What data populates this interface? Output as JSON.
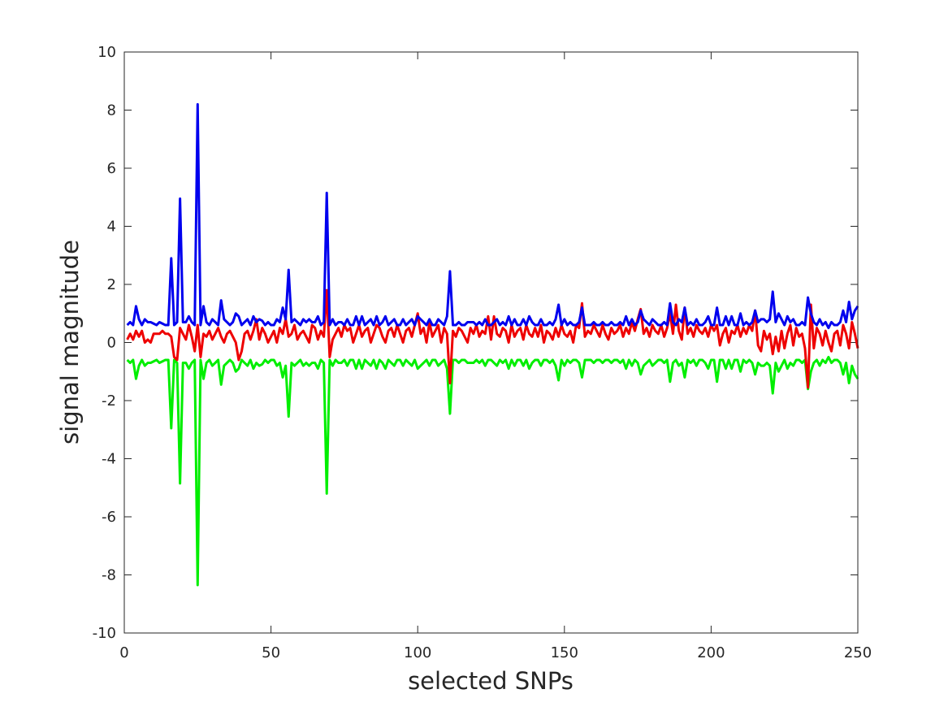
{
  "chart_data": {
    "type": "line",
    "xlabel": "selected SNPs",
    "ylabel": "signal magnitude",
    "xlim": [
      0,
      250
    ],
    "xticks": [
      0,
      50,
      100,
      150,
      200,
      250
    ],
    "ylim": [
      -10,
      10
    ],
    "yticks": [
      -10,
      -8,
      -6,
      -4,
      -2,
      0,
      2,
      4,
      6,
      8,
      10
    ],
    "x": [
      1,
      2,
      3,
      4,
      5,
      6,
      7,
      8,
      9,
      10,
      11,
      12,
      13,
      14,
      15,
      16,
      17,
      18,
      19,
      20,
      21,
      22,
      23,
      24,
      25,
      26,
      27,
      28,
      29,
      30,
      31,
      32,
      33,
      34,
      35,
      36,
      37,
      38,
      39,
      40,
      41,
      42,
      43,
      44,
      45,
      46,
      47,
      48,
      49,
      50,
      51,
      52,
      53,
      54,
      55,
      56,
      57,
      58,
      59,
      60,
      61,
      62,
      63,
      64,
      65,
      66,
      67,
      68,
      69,
      70,
      71,
      72,
      73,
      74,
      75,
      76,
      77,
      78,
      79,
      80,
      81,
      82,
      83,
      84,
      85,
      86,
      87,
      88,
      89,
      90,
      91,
      92,
      93,
      94,
      95,
      96,
      97,
      98,
      99,
      100,
      101,
      102,
      103,
      104,
      105,
      106,
      107,
      108,
      109,
      110,
      111,
      112,
      113,
      114,
      115,
      116,
      117,
      118,
      119,
      120,
      121,
      122,
      123,
      124,
      125,
      126,
      127,
      128,
      129,
      130,
      131,
      132,
      133,
      134,
      135,
      136,
      137,
      138,
      139,
      140,
      141,
      142,
      143,
      144,
      145,
      146,
      147,
      148,
      149,
      150,
      151,
      152,
      153,
      154,
      155,
      156,
      157,
      158,
      159,
      160,
      161,
      162,
      163,
      164,
      165,
      166,
      167,
      168,
      169,
      170,
      171,
      172,
      173,
      174,
      175,
      176,
      177,
      178,
      179,
      180,
      181,
      182,
      183,
      184,
      185,
      186,
      187,
      188,
      189,
      190,
      191,
      192,
      193,
      194,
      195,
      196,
      197,
      198,
      199,
      200,
      201,
      202,
      203,
      204,
      205,
      206,
      207,
      208,
      209,
      210,
      211,
      212,
      213,
      214,
      215,
      216,
      217,
      218,
      219,
      220,
      221,
      222,
      223,
      224,
      225,
      226,
      227,
      228,
      229,
      230,
      231,
      232,
      233,
      234,
      235,
      236,
      237,
      238,
      239,
      240,
      241,
      242,
      243,
      244,
      245,
      246,
      247,
      248,
      249,
      250
    ],
    "series": [
      {
        "color": "#00ee00",
        "values": [
          -0.6,
          -0.7,
          -0.6,
          -1.25,
          -0.8,
          -0.6,
          -0.8,
          -0.7,
          -0.7,
          -0.65,
          -0.6,
          -0.7,
          -0.65,
          -0.6,
          -0.6,
          -2.95,
          -0.6,
          -0.7,
          -4.85,
          -0.7,
          -0.7,
          -0.9,
          -0.7,
          -0.6,
          -8.35,
          -0.6,
          -1.25,
          -0.7,
          -0.6,
          -0.8,
          -0.7,
          -0.6,
          -1.45,
          -0.8,
          -0.7,
          -0.6,
          -0.7,
          -1.0,
          -0.9,
          -0.6,
          -0.7,
          -0.8,
          -0.6,
          -0.9,
          -0.7,
          -0.8,
          -0.75,
          -0.6,
          -0.7,
          -0.6,
          -0.6,
          -0.8,
          -0.7,
          -1.2,
          -0.8,
          -2.55,
          -0.7,
          -0.8,
          -0.7,
          -0.6,
          -0.8,
          -0.7,
          -0.8,
          -0.7,
          -0.7,
          -0.9,
          -0.6,
          -0.7,
          -5.2,
          -0.6,
          -0.8,
          -0.6,
          -0.7,
          -0.7,
          -0.6,
          -0.8,
          -0.6,
          -0.6,
          -0.9,
          -0.6,
          -0.9,
          -0.6,
          -0.7,
          -0.8,
          -0.6,
          -0.9,
          -0.6,
          -0.7,
          -0.9,
          -0.6,
          -0.7,
          -0.8,
          -0.6,
          -0.6,
          -0.8,
          -0.6,
          -0.7,
          -0.8,
          -0.6,
          -0.9,
          -0.8,
          -0.7,
          -0.6,
          -0.8,
          -0.6,
          -0.6,
          -0.8,
          -0.7,
          -0.6,
          -0.9,
          -2.45,
          -0.6,
          -0.6,
          -0.7,
          -0.6,
          -0.6,
          -0.7,
          -0.7,
          -0.7,
          -0.6,
          -0.7,
          -0.6,
          -0.8,
          -0.6,
          -0.6,
          -0.7,
          -0.8,
          -0.6,
          -0.7,
          -0.6,
          -0.9,
          -0.6,
          -0.8,
          -0.6,
          -0.6,
          -0.8,
          -0.6,
          -0.9,
          -0.7,
          -0.6,
          -0.6,
          -0.8,
          -0.6,
          -0.6,
          -0.7,
          -0.6,
          -0.8,
          -1.3,
          -0.6,
          -0.8,
          -0.6,
          -0.7,
          -0.6,
          -0.6,
          -0.7,
          -1.2,
          -0.6,
          -0.6,
          -0.6,
          -0.7,
          -0.6,
          -0.6,
          -0.7,
          -0.6,
          -0.6,
          -0.7,
          -0.6,
          -0.6,
          -0.7,
          -0.6,
          -0.9,
          -0.6,
          -0.8,
          -0.6,
          -0.7,
          -1.1,
          -0.8,
          -0.7,
          -0.6,
          -0.8,
          -0.7,
          -0.6,
          -0.6,
          -0.7,
          -0.6,
          -1.35,
          -0.7,
          -0.6,
          -0.8,
          -0.7,
          -1.2,
          -0.6,
          -0.7,
          -0.6,
          -0.8,
          -0.6,
          -0.6,
          -0.7,
          -0.9,
          -0.6,
          -0.6,
          -1.35,
          -0.6,
          -0.6,
          -0.9,
          -0.6,
          -0.9,
          -0.6,
          -0.6,
          -1.0,
          -0.6,
          -0.7,
          -0.6,
          -0.7,
          -1.1,
          -0.7,
          -0.8,
          -0.8,
          -0.7,
          -0.8,
          -1.75,
          -0.7,
          -1.0,
          -0.8,
          -0.6,
          -0.9,
          -0.7,
          -0.8,
          -0.6,
          -0.6,
          -0.7,
          -0.6,
          -1.6,
          -1.0,
          -0.7,
          -0.6,
          -0.8,
          -0.6,
          -0.7,
          -0.5,
          -0.7,
          -0.6,
          -0.6,
          -0.7,
          -1.1,
          -0.7,
          -1.4,
          -0.8,
          -1.1,
          -1.25
        ]
      },
      {
        "color": "#ee0000",
        "values": [
          0.1,
          0.3,
          0.1,
          0.4,
          0.2,
          0.4,
          0.0,
          0.1,
          0.0,
          0.3,
          0.3,
          0.3,
          0.4,
          0.3,
          0.3,
          0.2,
          -0.5,
          -0.6,
          0.5,
          0.3,
          0.1,
          0.6,
          0.2,
          -0.3,
          0.6,
          -0.5,
          0.3,
          0.2,
          0.4,
          0.1,
          0.3,
          0.5,
          0.2,
          0.0,
          0.3,
          0.4,
          0.2,
          0.0,
          -0.6,
          -0.3,
          0.3,
          0.4,
          0.1,
          0.4,
          0.8,
          0.1,
          0.5,
          0.3,
          0.0,
          0.2,
          0.4,
          0.0,
          0.5,
          0.3,
          0.8,
          0.2,
          0.3,
          0.6,
          0.1,
          0.3,
          0.4,
          0.2,
          0.0,
          0.6,
          0.5,
          0.1,
          0.4,
          0.2,
          1.8,
          -0.5,
          0.1,
          0.3,
          0.5,
          0.2,
          0.6,
          0.4,
          0.5,
          0.0,
          0.3,
          0.6,
          0.2,
          0.4,
          0.5,
          0.0,
          0.3,
          0.6,
          0.5,
          0.2,
          0.0,
          0.4,
          0.5,
          0.2,
          0.6,
          0.3,
          0.0,
          0.4,
          0.5,
          0.2,
          0.6,
          1.0,
          0.3,
          0.5,
          0.0,
          0.7,
          0.2,
          0.4,
          0.6,
          0.0,
          0.5,
          0.3,
          -1.4,
          0.4,
          0.2,
          0.5,
          0.4,
          0.2,
          0.0,
          0.5,
          0.3,
          0.6,
          0.2,
          0.4,
          0.3,
          0.9,
          0.1,
          0.9,
          0.3,
          0.2,
          0.5,
          0.4,
          0.0,
          0.6,
          0.2,
          0.4,
          0.5,
          0.1,
          0.6,
          0.3,
          0.2,
          0.5,
          0.2,
          0.6,
          0.0,
          0.4,
          0.3,
          0.1,
          0.5,
          0.2,
          0.6,
          0.3,
          0.2,
          0.4,
          0.0,
          0.6,
          0.5,
          1.35,
          0.2,
          0.4,
          0.3,
          0.6,
          0.4,
          0.2,
          0.6,
          0.3,
          0.1,
          0.5,
          0.3,
          0.4,
          0.6,
          0.2,
          0.5,
          0.3,
          0.7,
          0.4,
          0.8,
          1.15,
          0.3,
          0.5,
          0.2,
          0.6,
          0.4,
          0.3,
          0.6,
          0.2,
          0.5,
          1.0,
          0.3,
          1.3,
          0.4,
          0.1,
          1.2,
          0.3,
          0.5,
          0.2,
          0.6,
          0.4,
          0.3,
          0.5,
          0.2,
          0.6,
          0.4,
          0.6,
          -0.1,
          0.3,
          0.5,
          0.0,
          0.4,
          0.3,
          0.6,
          0.2,
          0.5,
          0.3,
          0.6,
          0.4,
          1.1,
          -0.1,
          -0.3,
          0.4,
          0.1,
          0.3,
          -0.4,
          0.2,
          -0.3,
          0.4,
          -0.2,
          0.3,
          0.6,
          -0.1,
          0.5,
          0.2,
          0.3,
          -0.2,
          -1.55,
          1.3,
          -0.2,
          0.5,
          0.3,
          -0.1,
          0.4,
          0.0,
          -0.3,
          0.3,
          0.4,
          -0.1,
          0.6,
          0.3,
          -0.2,
          0.7,
          0.3,
          -0.2
        ]
      },
      {
        "color": "#0000ee",
        "values": [
          0.6,
          0.7,
          0.6,
          1.25,
          0.8,
          0.6,
          0.8,
          0.7,
          0.7,
          0.65,
          0.6,
          0.7,
          0.65,
          0.6,
          0.6,
          2.9,
          0.6,
          0.7,
          4.95,
          0.7,
          0.7,
          0.9,
          0.7,
          0.6,
          8.2,
          0.6,
          1.25,
          0.7,
          0.6,
          0.8,
          0.7,
          0.6,
          1.45,
          0.8,
          0.7,
          0.6,
          0.7,
          1.0,
          0.9,
          0.6,
          0.7,
          0.8,
          0.6,
          0.9,
          0.7,
          0.8,
          0.75,
          0.6,
          0.7,
          0.6,
          0.6,
          0.8,
          0.7,
          1.2,
          0.8,
          2.5,
          0.7,
          0.8,
          0.7,
          0.6,
          0.8,
          0.7,
          0.8,
          0.7,
          0.7,
          0.9,
          0.6,
          0.7,
          5.15,
          0.6,
          0.8,
          0.6,
          0.7,
          0.7,
          0.6,
          0.8,
          0.6,
          0.6,
          0.9,
          0.6,
          0.9,
          0.6,
          0.7,
          0.8,
          0.6,
          0.9,
          0.6,
          0.7,
          0.9,
          0.6,
          0.7,
          0.8,
          0.6,
          0.6,
          0.8,
          0.6,
          0.7,
          0.8,
          0.6,
          0.9,
          0.8,
          0.7,
          0.6,
          0.8,
          0.6,
          0.6,
          0.8,
          0.7,
          0.6,
          0.9,
          2.45,
          0.6,
          0.6,
          0.7,
          0.6,
          0.6,
          0.7,
          0.7,
          0.7,
          0.6,
          0.7,
          0.6,
          0.8,
          0.6,
          0.6,
          0.7,
          0.8,
          0.6,
          0.7,
          0.6,
          0.9,
          0.6,
          0.8,
          0.6,
          0.6,
          0.8,
          0.6,
          0.9,
          0.7,
          0.6,
          0.6,
          0.8,
          0.6,
          0.6,
          0.7,
          0.6,
          0.8,
          1.3,
          0.6,
          0.8,
          0.6,
          0.7,
          0.6,
          0.6,
          0.7,
          1.2,
          0.6,
          0.6,
          0.6,
          0.7,
          0.6,
          0.6,
          0.7,
          0.6,
          0.6,
          0.7,
          0.6,
          0.6,
          0.7,
          0.6,
          0.9,
          0.6,
          0.8,
          0.6,
          0.7,
          1.1,
          0.8,
          0.7,
          0.6,
          0.8,
          0.7,
          0.6,
          0.6,
          0.7,
          0.6,
          1.35,
          0.7,
          0.6,
          0.8,
          0.7,
          1.2,
          0.6,
          0.7,
          0.6,
          0.8,
          0.6,
          0.6,
          0.7,
          0.9,
          0.6,
          0.6,
          1.2,
          0.6,
          0.6,
          0.9,
          0.6,
          0.9,
          0.6,
          0.6,
          1.0,
          0.6,
          0.7,
          0.6,
          0.7,
          1.1,
          0.7,
          0.8,
          0.8,
          0.7,
          0.8,
          1.75,
          0.7,
          1.0,
          0.8,
          0.6,
          0.9,
          0.7,
          0.8,
          0.6,
          0.6,
          0.7,
          0.6,
          1.55,
          1.0,
          0.7,
          0.6,
          0.8,
          0.6,
          0.7,
          0.5,
          0.7,
          0.6,
          0.6,
          0.7,
          1.1,
          0.7,
          1.4,
          0.8,
          1.1,
          1.25
        ]
      }
    ]
  }
}
